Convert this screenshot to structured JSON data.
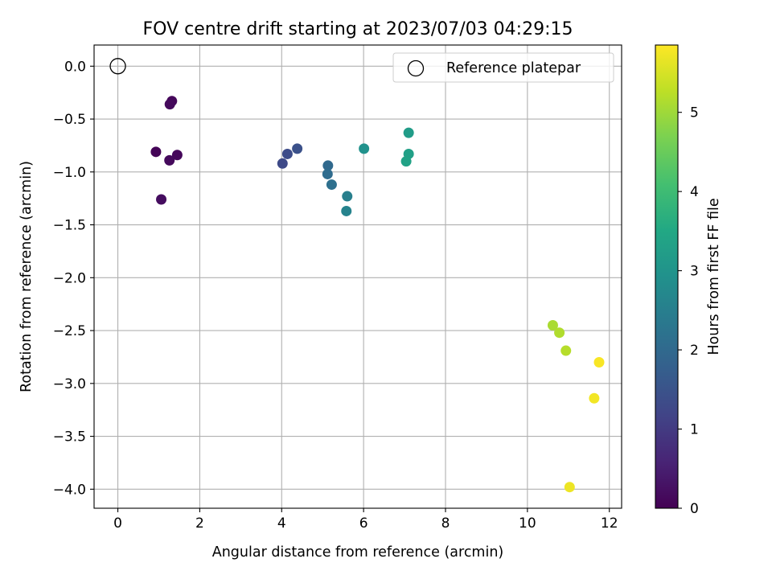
{
  "chart_data": {
    "type": "scatter",
    "title": "FOV centre drift starting at 2023/07/03 04:29:15",
    "xlabel": "Angular distance from reference (arcmin)",
    "ylabel": "Rotation from reference (arcmin)",
    "xlim": [
      -0.58,
      12.3
    ],
    "ylim": [
      -4.18,
      0.2
    ],
    "xticks": [
      0,
      2,
      4,
      6,
      8,
      10,
      12
    ],
    "yticks": [
      0.0,
      -0.5,
      -1.0,
      -1.5,
      -2.0,
      -2.5,
      -3.0,
      -3.5,
      -4.0
    ],
    "grid": true,
    "legend": {
      "location": "top-right",
      "entries": [
        "Reference platepar"
      ]
    },
    "reference_point": {
      "x": 0,
      "y": 0,
      "label": "Reference platepar"
    },
    "colorbar": {
      "label": "Hours from first FF file",
      "range": [
        0,
        5.85
      ],
      "ticks": [
        0,
        1,
        2,
        3,
        4,
        5
      ],
      "colormap": "viridis"
    },
    "points": [
      {
        "x": 1.32,
        "y": -0.33,
        "hours": 0.1
      },
      {
        "x": 1.27,
        "y": -0.36,
        "hours": 0.15
      },
      {
        "x": 0.93,
        "y": -0.81,
        "hours": 0.05
      },
      {
        "x": 1.45,
        "y": -0.84,
        "hours": 0.1
      },
      {
        "x": 1.26,
        "y": -0.89,
        "hours": 0.15
      },
      {
        "x": 1.06,
        "y": -1.26,
        "hours": 0.2
      },
      {
        "x": 4.02,
        "y": -0.92,
        "hours": 1.3
      },
      {
        "x": 4.14,
        "y": -0.83,
        "hours": 1.35
      },
      {
        "x": 4.38,
        "y": -0.78,
        "hours": 1.45
      },
      {
        "x": 5.13,
        "y": -0.94,
        "hours": 2.0
      },
      {
        "x": 5.12,
        "y": -1.02,
        "hours": 2.05
      },
      {
        "x": 5.22,
        "y": -1.12,
        "hours": 2.15
      },
      {
        "x": 5.6,
        "y": -1.23,
        "hours": 2.5
      },
      {
        "x": 5.58,
        "y": -1.37,
        "hours": 2.6
      },
      {
        "x": 6.01,
        "y": -0.78,
        "hours": 2.95
      },
      {
        "x": 7.1,
        "y": -0.63,
        "hours": 3.2
      },
      {
        "x": 7.1,
        "y": -0.83,
        "hours": 3.3
      },
      {
        "x": 7.04,
        "y": -0.9,
        "hours": 3.35
      },
      {
        "x": 10.62,
        "y": -2.45,
        "hours": 5.1
      },
      {
        "x": 10.78,
        "y": -2.52,
        "hours": 5.15
      },
      {
        "x": 10.94,
        "y": -2.69,
        "hours": 5.2
      },
      {
        "x": 11.75,
        "y": -2.8,
        "hours": 5.8
      },
      {
        "x": 11.63,
        "y": -3.14,
        "hours": 5.75
      },
      {
        "x": 11.03,
        "y": -3.98,
        "hours": 5.7
      }
    ]
  }
}
